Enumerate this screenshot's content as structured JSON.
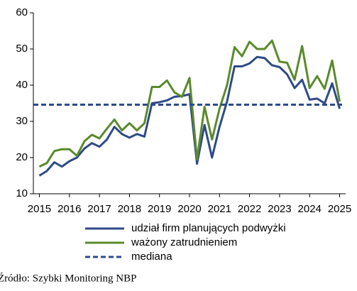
{
  "chart_data": {
    "type": "line",
    "x": [
      2015,
      2015.25,
      2015.5,
      2015.75,
      2016,
      2016.25,
      2016.5,
      2016.75,
      2017,
      2017.25,
      2017.5,
      2017.75,
      2018,
      2018.25,
      2018.5,
      2018.75,
      2019,
      2019.25,
      2019.5,
      2019.75,
      2020,
      2020.25,
      2020.5,
      2020.75,
      2021,
      2021.25,
      2021.5,
      2021.75,
      2022,
      2022.25,
      2022.5,
      2022.75,
      2023,
      2023.25,
      2023.5,
      2023.75,
      2024,
      2024.25,
      2024.5,
      2024.75,
      2025
    ],
    "series": [
      {
        "name": "udział firm planujących podwyżki",
        "color": "#2e4b87",
        "values": [
          15,
          16.3,
          18.7,
          17.5,
          19,
          20,
          22.5,
          24,
          23,
          25,
          28.5,
          26.5,
          25.5,
          26.5,
          25.8,
          35,
          35.3,
          35.8,
          36.8,
          37,
          37.5,
          18.3,
          29,
          20,
          28.5,
          35.5,
          45.2,
          45.2,
          46,
          47.8,
          47.5,
          45.5,
          45,
          43,
          39.2,
          41.5,
          36,
          36.3,
          35,
          40.5,
          33.5
        ]
      },
      {
        "name": "ważony zatrudnieniem",
        "color": "#5a8a2c",
        "values": [
          17.5,
          18.5,
          21.8,
          22.3,
          22.3,
          20.5,
          24.5,
          26.3,
          25.3,
          28,
          30.5,
          27.5,
          29.5,
          27.5,
          29.5,
          39.5,
          39.5,
          41.3,
          38,
          36.8,
          42,
          19.5,
          34,
          25,
          33.5,
          40,
          50.5,
          48,
          52,
          50,
          50,
          52.3,
          46.5,
          46.2,
          41.5,
          50.8,
          39.2,
          42.5,
          39,
          46.8,
          35.5
        ]
      }
    ],
    "reference_lines": [
      {
        "name": "mediana",
        "value": 34.6,
        "color": "#2e4b87",
        "dashed": true
      }
    ],
    "xlim": [
      2014.8,
      2025.2
    ],
    "xticks": [
      2015,
      2016,
      2017,
      2018,
      2019,
      2020,
      2021,
      2022,
      2023,
      2024,
      2025
    ],
    "ylim": [
      10,
      60
    ],
    "yticks": [
      10,
      20,
      30,
      40,
      50,
      60
    ],
    "source": "Źródło: Szybki Monitoring NBP"
  }
}
